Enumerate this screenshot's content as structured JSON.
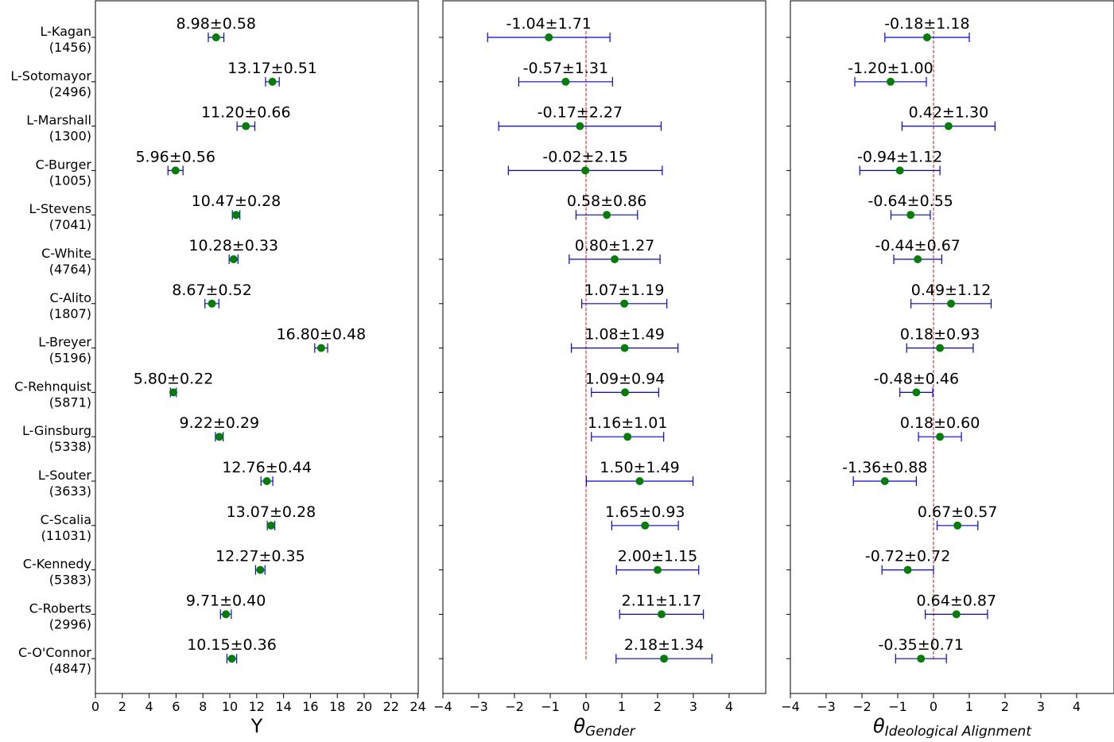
{
  "chart_data": {
    "type": "scatter",
    "categories": [
      "L-Kagan",
      "L-Sotomayor",
      "L-Marshall",
      "C-Burger",
      "L-Stevens",
      "C-White",
      "C-Alito",
      "L-Breyer",
      "C-Rehnquist",
      "L-Ginsburg",
      "L-Souter",
      "C-Scalia",
      "C-Kennedy",
      "C-Roberts",
      "C-O'Connor"
    ],
    "category_counts": [
      "(1456)",
      "(2496)",
      "(1300)",
      "(1005)",
      "(7041)",
      "(4764)",
      "(1807)",
      "(5196)",
      "(5871)",
      "(5338)",
      "(3633)",
      "(11031)",
      "(5383)",
      "(2996)",
      "(4847)"
    ],
    "colors": {
      "point": "#008000",
      "errorbar": "#0000ff",
      "reference": "#ff0000"
    },
    "panels": [
      {
        "name": "Y",
        "xlabel": "Y",
        "xlim": [
          0,
          24
        ],
        "ticks": [
          "0",
          "2",
          "4",
          "6",
          "8",
          "10",
          "12",
          "14",
          "16",
          "18",
          "20",
          "22",
          "24"
        ],
        "reference_line": false,
        "values": [
          8.98,
          13.17,
          11.2,
          5.96,
          10.47,
          10.28,
          8.67,
          16.8,
          5.8,
          9.22,
          12.76,
          13.07,
          12.27,
          9.71,
          10.15
        ],
        "errors": [
          0.58,
          0.51,
          0.66,
          0.56,
          0.28,
          0.33,
          0.52,
          0.48,
          0.22,
          0.29,
          0.44,
          0.28,
          0.35,
          0.4,
          0.36
        ],
        "labels": [
          "8.98±0.58",
          "13.17±0.51",
          "11.20±0.66",
          "5.96±0.56",
          "10.47±0.28",
          "10.28±0.33",
          "8.67±0.52",
          "16.80±0.48",
          "5.80±0.22",
          "9.22±0.29",
          "12.76±0.44",
          "13.07±0.28",
          "12.27±0.35",
          "9.71±0.40",
          "10.15±0.36"
        ]
      },
      {
        "name": "gender",
        "xlabel": "θ",
        "xlabel_sub": "Gender",
        "xlim": [
          -4,
          5
        ],
        "ticks": [
          "−4",
          "−3",
          "−2",
          "−1",
          "0",
          "1",
          "2",
          "3",
          "4"
        ],
        "reference_line": true,
        "values": [
          -1.04,
          -0.57,
          -0.17,
          -0.02,
          0.58,
          0.8,
          1.07,
          1.08,
          1.09,
          1.16,
          1.5,
          1.65,
          2.0,
          2.11,
          2.18
        ],
        "errors": [
          1.71,
          1.31,
          2.27,
          2.15,
          0.86,
          1.27,
          1.19,
          1.49,
          0.94,
          1.01,
          1.49,
          0.93,
          1.15,
          1.17,
          1.34
        ],
        "labels": [
          "-1.04±1.71",
          "-0.57±1.31",
          "-0.17±2.27",
          "-0.02±2.15",
          "0.58±0.86",
          "0.80±1.27",
          "1.07±1.19",
          "1.08±1.49",
          "1.09±0.94",
          "1.16±1.01",
          "1.50±1.49",
          "1.65±0.93",
          "2.00±1.15",
          "2.11±1.17",
          "2.18±1.34"
        ]
      },
      {
        "name": "ideology",
        "xlabel": "θ",
        "xlabel_sub": "Ideological Alignment",
        "xlim": [
          -4,
          5
        ],
        "ticks": [
          "−4",
          "−3",
          "−2",
          "−1",
          "0",
          "1",
          "2",
          "3",
          "4"
        ],
        "reference_line": true,
        "values": [
          -0.18,
          -1.2,
          0.42,
          -0.94,
          -0.64,
          -0.44,
          0.49,
          0.18,
          -0.48,
          0.18,
          -1.36,
          0.67,
          -0.72,
          0.64,
          -0.35
        ],
        "errors": [
          1.18,
          1.0,
          1.3,
          1.12,
          0.55,
          0.67,
          1.12,
          0.93,
          0.46,
          0.6,
          0.88,
          0.57,
          0.72,
          0.87,
          0.71
        ],
        "labels": [
          "-0.18±1.18",
          "-1.20±1.00",
          "0.42±1.30",
          "-0.94±1.12",
          "-0.64±0.55",
          "-0.44±0.67",
          "0.49±1.12",
          "0.18±0.93",
          "-0.48±0.46",
          "0.18±0.60",
          "-1.36±0.88",
          "0.67±0.57",
          "-0.72±0.72",
          "0.64±0.87",
          "-0.35±0.71"
        ]
      }
    ]
  }
}
